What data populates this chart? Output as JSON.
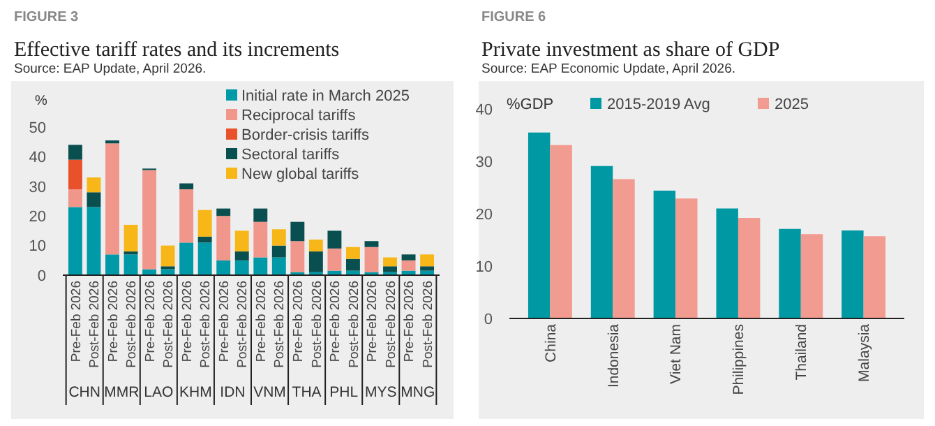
{
  "chart_data": [
    {
      "type": "bar",
      "title": "Effective tariff rates and its increments",
      "stacked": true,
      "ylabel": "%",
      "annotations": [
        "FIGURE 3",
        "Source: EAP Update, April 2026.",
        "CHN",
        "MMR",
        "LAO",
        "KHM",
        "IDN",
        "VNM",
        "THA",
        "PHL",
        "MYS",
        "MNG"
      ],
      "categories": [
        "Pre-Feb 2026",
        "Post-Feb 2026",
        "Pre-Feb 2026",
        "Post-Feb 2026",
        "Pre-Feb 2026",
        "Post-Feb 2026",
        "Pre-Feb 2026",
        "Post-Feb 2026",
        "Pre-Feb 2026",
        "Post-Feb 2026",
        "Pre-Feb 2026",
        "Post-Feb 2026",
        "Pre-Feb 2026",
        "Post-Feb 2026",
        "Pre-Feb 2026",
        "Post-Feb 2026",
        "Pre-Feb 2026",
        "Post-Feb 2026",
        "Pre-Feb 2026",
        "Post-Feb 2026"
      ],
      "series": [
        {
          "name": "Initial rate in March 2025",
          "color": "#0099a8",
          "values": [
            23,
            23,
            7,
            7,
            2,
            2,
            11,
            11,
            5,
            5,
            6,
            6,
            1,
            1,
            1.5,
            1.5,
            1,
            1,
            1.5,
            1.5
          ]
        },
        {
          "name": "Reciprocal tariffs",
          "color": "#f0968a",
          "values": [
            6,
            0,
            37.5,
            0,
            33.5,
            0,
            18,
            0,
            15,
            0,
            12,
            0,
            10.5,
            0,
            7.5,
            0,
            8.5,
            0,
            3.5,
            0
          ]
        },
        {
          "name": "Border-crisis tariffs",
          "color": "#e8512a",
          "values": [
            10,
            0,
            0,
            0,
            0,
            0,
            0,
            0,
            0,
            0,
            0,
            0,
            0,
            0,
            0,
            0,
            0,
            0,
            0,
            0
          ]
        },
        {
          "name": "Sectoral tariffs",
          "color": "#0a4f4f",
          "values": [
            5,
            5,
            1,
            1,
            0.5,
            1,
            2,
            2,
            2.5,
            3,
            4.5,
            4,
            6.5,
            7,
            6,
            4,
            2,
            2,
            2,
            1.5
          ]
        },
        {
          "name": "New global tariffs",
          "color": "#f7b718",
          "values": [
            0,
            5,
            0,
            9,
            0,
            7,
            0,
            9,
            0,
            7,
            0,
            5.5,
            0,
            4,
            0,
            4,
            0,
            3,
            0,
            4
          ]
        }
      ],
      "ylim": [
        0,
        50
      ],
      "yticks": [
        0,
        10,
        20,
        30,
        40,
        50
      ],
      "legend": "top right"
    },
    {
      "type": "bar",
      "title": "Private investment as share of GDP",
      "ylabel": "%GDP",
      "annotations": [
        "FIGURE 6",
        "Source: EAP Economic Update, April 2026."
      ],
      "categories": [
        "China",
        "Indonesia",
        "Viet Nam",
        "Philippines",
        "Thailand",
        "Malaysia"
      ],
      "series": [
        {
          "name": "2015-2019 Avg",
          "color": "#0099a3",
          "values": [
            35.5,
            29.1,
            24.4,
            21,
            17.1,
            16.8
          ]
        },
        {
          "name": "2025",
          "color": "#f29b90",
          "values": [
            33.1,
            26.6,
            22.9,
            19.2,
            16.1,
            15.7
          ]
        }
      ],
      "ylim": [
        0,
        40
      ],
      "yticks": [
        0,
        10,
        20,
        30,
        40
      ],
      "legend": "top"
    }
  ]
}
